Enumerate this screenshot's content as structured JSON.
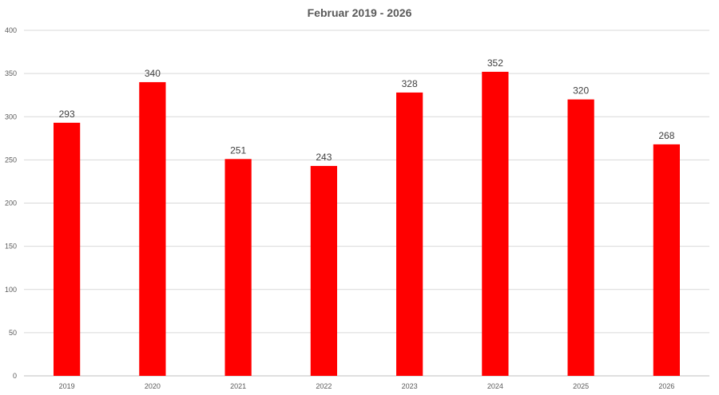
{
  "chart_data": {
    "type": "bar",
    "title": "Februar 2019 - 2026",
    "categories": [
      "2019",
      "2020",
      "2021",
      "2022",
      "2023",
      "2024",
      "2025",
      "2026"
    ],
    "values": [
      293,
      340,
      251,
      243,
      328,
      352,
      320,
      268
    ],
    "ylim": [
      0,
      400
    ],
    "yticks": [
      "0",
      "50",
      "100",
      "150",
      "200",
      "250",
      "300",
      "350",
      "400"
    ],
    "data_labels": [
      "293",
      "340",
      "251",
      "243",
      "328",
      "352",
      "320",
      "268"
    ],
    "bar_color": "#ff0000",
    "grid": true,
    "legend": "none"
  }
}
